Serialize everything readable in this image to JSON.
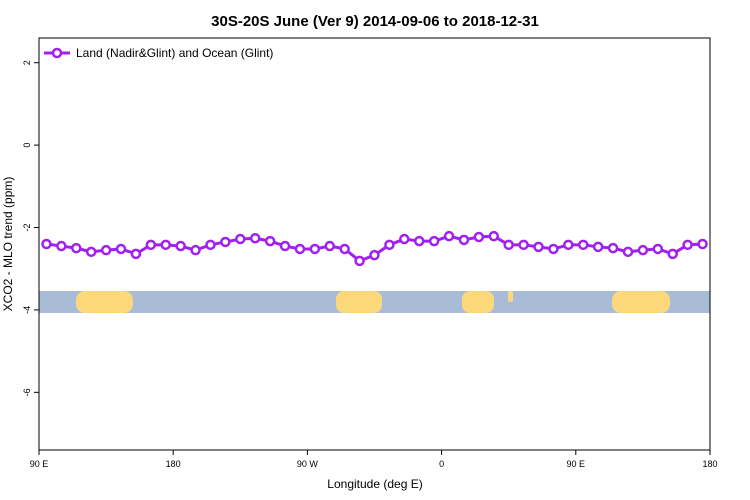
{
  "chart_data": {
    "type": "line",
    "title": "30S-20S June (Ver 9)   2014-09-06 to 2018-12-31",
    "x_label": "Longitude (deg E)",
    "y_label": "XCO2 - MLO trend (ppm)",
    "legend_position": "top-left",
    "xlim": [
      90,
      540
    ],
    "xticks": [
      {
        "value": 90,
        "label": "90 E"
      },
      180,
      {
        "value": 270,
        "label": "90 W"
      },
      {
        "value": 360,
        "label": "0"
      },
      {
        "value": 450,
        "label": "90 E"
      },
      {
        "value": 540,
        "label": "180"
      }
    ],
    "ylim": [
      -7.4,
      2.6
    ],
    "yticks": [
      2,
      0,
      -2,
      -4,
      -6
    ],
    "series": [
      {
        "name": "Land (Nadir&Glint) and Ocean (Glint)",
        "color": "#a020f0",
        "x": [
          95,
          105,
          115,
          125,
          135,
          145,
          155,
          165,
          175,
          185,
          195,
          205,
          215,
          225,
          235,
          245,
          255,
          265,
          275,
          285,
          295,
          305,
          315,
          325,
          335,
          345,
          355,
          365,
          375,
          385,
          395,
          405,
          415,
          425,
          435,
          445,
          455,
          465,
          475,
          485,
          495,
          505,
          515,
          525,
          535
        ],
        "values": [
          -2.4,
          -2.45,
          -2.5,
          -2.59,
          -2.55,
          -2.52,
          -2.64,
          -2.42,
          -2.42,
          -2.45,
          -2.55,
          -2.42,
          -2.35,
          -2.28,
          -2.26,
          -2.33,
          -2.45,
          -2.52,
          -2.52,
          -2.45,
          -2.52,
          -2.81,
          -2.67,
          -2.42,
          -2.28,
          -2.33,
          -2.33,
          -2.21,
          -2.3,
          -2.23,
          -2.21,
          -2.42,
          -2.42,
          -2.47,
          -2.52,
          -2.42,
          -2.42,
          -2.47,
          -2.5,
          -2.59,
          -2.55,
          -2.52,
          -2.64,
          -2.42,
          -2.4
        ]
      }
    ]
  }
}
